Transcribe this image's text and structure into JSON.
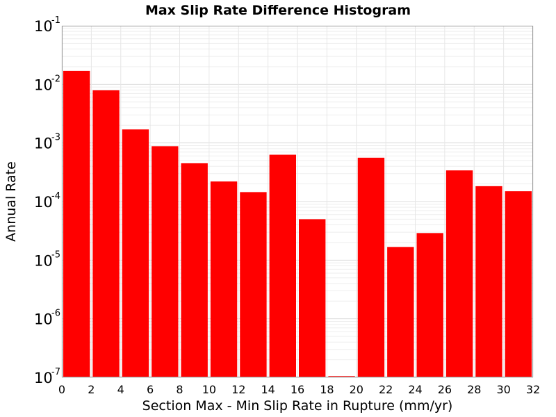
{
  "chart_data": {
    "type": "bar",
    "title": "Max Slip Rate Difference Histogram",
    "xlabel": "Section Max - Min Slip Rate in Rupture (mm/yr)",
    "ylabel": "Annual Rate",
    "xlim": [
      0,
      32
    ],
    "ylim": [
      1e-07,
      0.1
    ],
    "yscale": "log",
    "grid": true,
    "bar_width": 2,
    "bar_color": "#ff0000",
    "x_ticks": [
      "0",
      "2",
      "4",
      "6",
      "8",
      "10",
      "12",
      "14",
      "16",
      "18",
      "20",
      "22",
      "24",
      "26",
      "28",
      "30",
      "32"
    ],
    "y_ticks": [
      {
        "base": "10",
        "exp": "-1"
      },
      {
        "base": "10",
        "exp": "-2"
      },
      {
        "base": "10",
        "exp": "-3"
      },
      {
        "base": "10",
        "exp": "-4"
      },
      {
        "base": "10",
        "exp": "-5"
      },
      {
        "base": "10",
        "exp": "-6"
      },
      {
        "base": "10",
        "exp": "-7"
      }
    ],
    "bins": [
      {
        "x": 1,
        "value": 0.017
      },
      {
        "x": 3,
        "value": 0.0079
      },
      {
        "x": 5,
        "value": 0.0017
      },
      {
        "x": 7,
        "value": 0.00088
      },
      {
        "x": 9,
        "value": 0.00045
      },
      {
        "x": 11,
        "value": 0.00022
      },
      {
        "x": 13,
        "value": 0.000145
      },
      {
        "x": 15,
        "value": 0.00063
      },
      {
        "x": 17,
        "value": 5e-05
      },
      {
        "x": 19,
        "value": 0
      },
      {
        "x": 21,
        "value": 0.00056
      },
      {
        "x": 23,
        "value": 1.68e-05
      },
      {
        "x": 25,
        "value": 2.9e-05
      },
      {
        "x": 27,
        "value": 0.00034
      },
      {
        "x": 29,
        "value": 0.000183
      },
      {
        "x": 31,
        "value": 0.00015
      }
    ]
  }
}
